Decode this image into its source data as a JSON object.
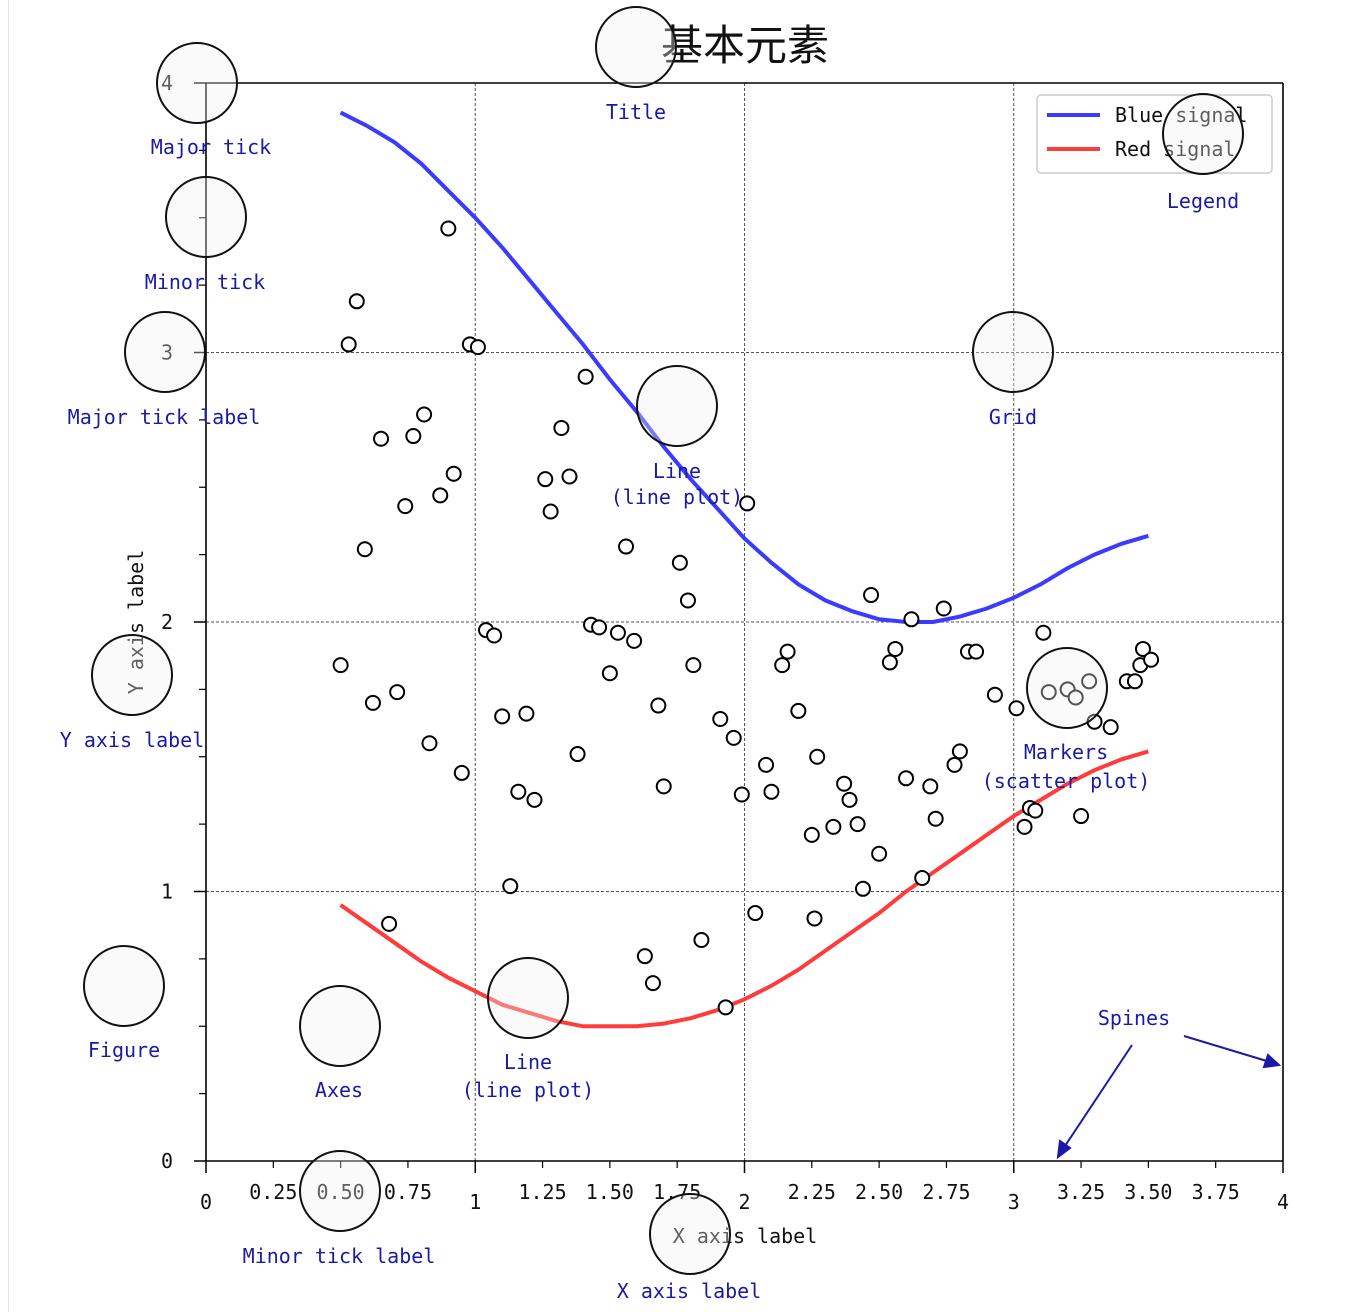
{
  "chart_data": {
    "type": "line+scatter",
    "title": "基本元素",
    "xlabel": "X axis label",
    "ylabel": "Y axis label",
    "xlim": [
      0,
      4
    ],
    "ylim": [
      0,
      4
    ],
    "x_major_ticks": [
      0,
      1,
      2,
      3,
      4
    ],
    "x_major_labels": [
      "0",
      "1",
      "2",
      "3",
      "4"
    ],
    "x_minor_ticks": [
      0.25,
      0.5,
      0.75,
      1.25,
      1.5,
      1.75,
      2.25,
      2.5,
      2.75,
      3.25,
      3.5,
      3.75
    ],
    "x_minor_labels": [
      "0.25",
      "0.50",
      "0.75",
      "1.25",
      "1.50",
      "1.75",
      "2.25",
      "2.50",
      "2.75",
      "3.25",
      "3.50",
      "3.75"
    ],
    "y_major_ticks": [
      0,
      1,
      2,
      3,
      4
    ],
    "y_major_labels": [
      "0",
      "1",
      "2",
      "3",
      "4"
    ],
    "y_minor_ticks": [
      0.25,
      0.5,
      0.75,
      1.25,
      1.5,
      1.75,
      2.25,
      2.5,
      2.75,
      3.25,
      3.5,
      3.75
    ],
    "grid": true,
    "legend_position": "top-right",
    "series": [
      {
        "name": "Blue signal",
        "color": "#3b3bff",
        "x": [
          0.5,
          0.6,
          0.7,
          0.8,
          0.9,
          1.0,
          1.1,
          1.2,
          1.3,
          1.4,
          1.5,
          1.6,
          1.7,
          1.8,
          1.9,
          2.0,
          2.1,
          2.2,
          2.3,
          2.4,
          2.5,
          2.6,
          2.7,
          2.8,
          2.9,
          3.0,
          3.1,
          3.2,
          3.3,
          3.4,
          3.5
        ],
        "y": [
          3.89,
          3.84,
          3.78,
          3.7,
          3.6,
          3.5,
          3.39,
          3.27,
          3.15,
          3.03,
          2.9,
          2.78,
          2.65,
          2.53,
          2.42,
          2.31,
          2.22,
          2.14,
          2.08,
          2.04,
          2.01,
          2.0,
          2.0,
          2.02,
          2.05,
          2.09,
          2.14,
          2.2,
          2.25,
          2.29,
          2.32
        ]
      },
      {
        "name": "Red signal",
        "color": "#ff3b3b",
        "x": [
          0.5,
          0.6,
          0.7,
          0.8,
          0.9,
          1.0,
          1.1,
          1.2,
          1.3,
          1.4,
          1.5,
          1.6,
          1.7,
          1.8,
          1.9,
          2.0,
          2.1,
          2.2,
          2.3,
          2.4,
          2.5,
          2.6,
          2.7,
          2.8,
          2.9,
          3.0,
          3.1,
          3.2,
          3.3,
          3.4,
          3.5
        ],
        "y": [
          0.95,
          0.88,
          0.81,
          0.74,
          0.68,
          0.63,
          0.58,
          0.55,
          0.52,
          0.5,
          0.5,
          0.5,
          0.51,
          0.53,
          0.56,
          0.6,
          0.65,
          0.71,
          0.78,
          0.85,
          0.92,
          1.0,
          1.07,
          1.14,
          1.21,
          1.28,
          1.34,
          1.4,
          1.45,
          1.49,
          1.52
        ]
      },
      {
        "name": "Markers",
        "type": "scatter",
        "x": [
          0.9,
          0.56,
          0.53,
          0.98,
          1.01,
          1.41,
          0.81,
          1.32,
          0.65,
          0.77,
          0.92,
          0.74,
          0.87,
          1.26,
          1.35,
          1.28,
          0.59,
          2.01,
          1.56,
          1.79,
          1.76,
          1.04,
          1.07,
          1.43,
          1.46,
          1.53,
          1.59,
          0.5,
          0.62,
          0.71,
          1.5,
          1.81,
          1.68,
          1.1,
          1.19,
          1.91,
          0.83,
          1.96,
          0.95,
          1.38,
          1.7,
          1.16,
          1.22,
          1.99,
          2.08,
          2.16,
          2.14,
          2.2,
          2.27,
          2.1,
          2.47,
          2.62,
          2.74,
          2.56,
          2.54,
          2.37,
          2.39,
          2.25,
          2.33,
          2.42,
          2.5,
          2.44,
          2.6,
          2.69,
          2.71,
          2.66,
          2.78,
          2.8,
          2.83,
          2.86,
          2.93,
          3.01,
          3.06,
          3.11,
          3.13,
          3.2,
          3.23,
          3.28,
          3.3,
          3.36,
          3.42,
          3.47,
          3.48,
          3.51,
          3.45,
          3.04,
          3.08,
          3.25,
          0.68,
          1.13,
          2.04,
          2.26,
          1.63,
          1.66,
          1.84,
          1.93
        ],
        "y": [
          3.46,
          3.19,
          3.03,
          3.03,
          3.02,
          2.91,
          2.77,
          2.72,
          2.68,
          2.69,
          2.55,
          2.43,
          2.47,
          2.53,
          2.54,
          2.41,
          2.27,
          2.44,
          2.28,
          2.08,
          2.22,
          1.97,
          1.95,
          1.99,
          1.98,
          1.96,
          1.93,
          1.84,
          1.7,
          1.74,
          1.81,
          1.84,
          1.69,
          1.65,
          1.66,
          1.64,
          1.55,
          1.57,
          1.44,
          1.51,
          1.39,
          1.37,
          1.34,
          1.36,
          1.47,
          1.89,
          1.84,
          1.67,
          1.5,
          1.37,
          2.1,
          2.01,
          2.05,
          1.9,
          1.85,
          1.4,
          1.34,
          1.21,
          1.24,
          1.25,
          1.14,
          1.01,
          1.42,
          1.39,
          1.27,
          1.05,
          1.47,
          1.52,
          1.89,
          1.89,
          1.73,
          1.68,
          1.31,
          1.96,
          1.74,
          1.75,
          1.72,
          1.78,
          1.63,
          1.61,
          1.78,
          1.84,
          1.9,
          1.86,
          1.78,
          1.24,
          1.3,
          1.28,
          0.88,
          1.02,
          0.92,
          0.9,
          0.76,
          0.66,
          0.82,
          0.57
        ]
      }
    ]
  },
  "legend": {
    "blue_label": "Blue signal",
    "red_label": "Red signal"
  },
  "annotations": {
    "title": "Title",
    "major_tick": "Major tick",
    "minor_tick": "Minor tick",
    "major_tick_label": "Major tick label",
    "grid": "Grid",
    "legend": "Legend",
    "line_upper_1": "Line",
    "line_upper_2": "(line plot)",
    "line_lower_1": "Line",
    "line_lower_2": "(line plot)",
    "markers_1": "Markers",
    "markers_2": "(scatter plot)",
    "y_axis_label": "Y axis label",
    "figure": "Figure",
    "axes": "Axes",
    "spines": "Spines",
    "minor_tick_label": "Minor tick label",
    "x_axis_label": "X axis label"
  },
  "colors": {
    "annotation": "#1a1aa6",
    "blue_line": "#3b3bff",
    "red_line": "#ff3b3b",
    "spine": "#000000",
    "grid": "#555555"
  }
}
